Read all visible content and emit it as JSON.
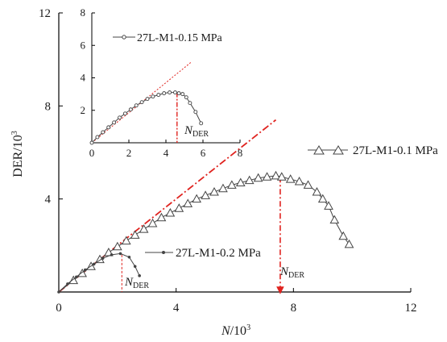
{
  "chart_data": {
    "type": "line",
    "xlabel_main": "N",
    "xlabel_unit": "/10",
    "xlabel_exp": "3",
    "ylabel_main": "DER/10",
    "ylabel_exp": "3",
    "xlim": [
      0,
      12
    ],
    "ylim": [
      0,
      12
    ],
    "x_ticks": [
      "0",
      "4",
      "8",
      "12"
    ],
    "y_ticks": [
      "4",
      "8",
      "12"
    ],
    "annotation_label": "N",
    "annotation_sub": "DER",
    "series": [
      {
        "name": "27L-M1-0.1 MPa",
        "marker": "triangle",
        "x": [
          0,
          0.5,
          0.8,
          1.1,
          1.4,
          1.7,
          2.0,
          2.3,
          2.6,
          2.9,
          3.2,
          3.5,
          3.8,
          4.1,
          4.4,
          4.7,
          5.0,
          5.3,
          5.6,
          5.9,
          6.2,
          6.5,
          6.8,
          7.1,
          7.4,
          7.6,
          7.9,
          8.2,
          8.5,
          8.8,
          9.0,
          9.2,
          9.4,
          9.7,
          9.9
        ],
        "y": [
          0,
          0.5,
          0.8,
          1.1,
          1.4,
          1.7,
          1.95,
          2.2,
          2.45,
          2.7,
          2.95,
          3.2,
          3.4,
          3.6,
          3.8,
          4.0,
          4.15,
          4.3,
          4.45,
          4.6,
          4.7,
          4.8,
          4.9,
          4.95,
          5.0,
          4.95,
          4.85,
          4.75,
          4.6,
          4.3,
          4.0,
          3.7,
          3.1,
          2.4,
          2.05
        ]
      },
      {
        "name": "27L-M1-0.2 MPa",
        "marker": "dot",
        "x": [
          0,
          0.3,
          0.6,
          0.9,
          1.2,
          1.5,
          1.8,
          2.1,
          2.4,
          2.6,
          2.75
        ],
        "y": [
          0,
          0.35,
          0.65,
          0.95,
          1.2,
          1.45,
          1.6,
          1.65,
          1.5,
          1.1,
          0.7
        ]
      }
    ],
    "fit_line": {
      "x": [
        0,
        7.4
      ],
      "y": [
        0,
        7.4
      ]
    },
    "n_der_marker": 7.55,
    "n_der_marker_small": 2.15,
    "inset": {
      "xlim": [
        0,
        8
      ],
      "ylim": [
        0,
        8
      ],
      "x_ticks": [
        "0",
        "2",
        "4",
        "6",
        "8"
      ],
      "y_ticks": [
        "2",
        "4",
        "6",
        "8"
      ],
      "series": {
        "name": "27L-M1-0.15 MPa",
        "marker": "circle",
        "x": [
          0,
          0.3,
          0.6,
          0.9,
          1.2,
          1.5,
          1.8,
          2.1,
          2.4,
          2.7,
          3.0,
          3.3,
          3.6,
          3.9,
          4.2,
          4.5,
          4.7,
          4.9,
          5.1,
          5.3,
          5.6,
          5.9
        ],
        "y": [
          0,
          0.35,
          0.65,
          0.95,
          1.25,
          1.55,
          1.8,
          2.05,
          2.3,
          2.5,
          2.7,
          2.85,
          2.95,
          3.05,
          3.1,
          3.1,
          3.05,
          3.0,
          2.8,
          2.45,
          1.9,
          1.2
        ]
      },
      "fit_line": {
        "x": [
          0,
          5.4
        ],
        "y": [
          0,
          5.0
        ]
      },
      "n_der_marker": 4.6
    }
  }
}
